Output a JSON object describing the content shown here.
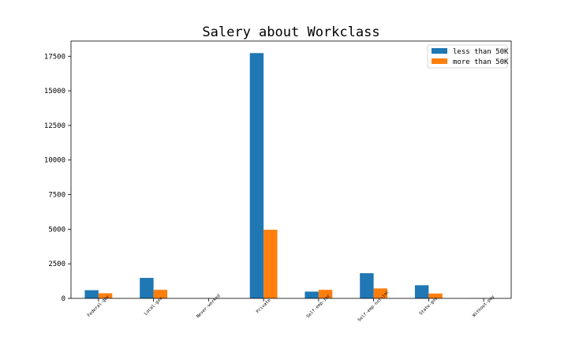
{
  "chart_data": {
    "type": "bar",
    "title": "Salery about Workclass",
    "xlabel": "",
    "ylabel": "",
    "categories": [
      "Federal-gov",
      "Local-gov",
      "Never-worked",
      "Private",
      "Self-emp-inc",
      "Self-emp-not-inc",
      "State-gov",
      "Without-pay"
    ],
    "series": [
      {
        "name": "less than 50K",
        "color": "#1f77b4",
        "values": [
          590,
          1480,
          7,
          17730,
          490,
          1820,
          950,
          14
        ]
      },
      {
        "name": "more than 50K",
        "color": "#ff7f0e",
        "values": [
          370,
          620,
          0,
          4960,
          620,
          720,
          350,
          0
        ]
      }
    ],
    "ylim": [
      0,
      18600
    ],
    "yticks": [
      0,
      2500,
      5000,
      7500,
      10000,
      12500,
      15000,
      17500
    ],
    "ytick_labels": [
      "0",
      "2500",
      "5000",
      "7500",
      "10000",
      "12500",
      "15000",
      "17500"
    ],
    "grid": false,
    "legend": "top-right"
  }
}
